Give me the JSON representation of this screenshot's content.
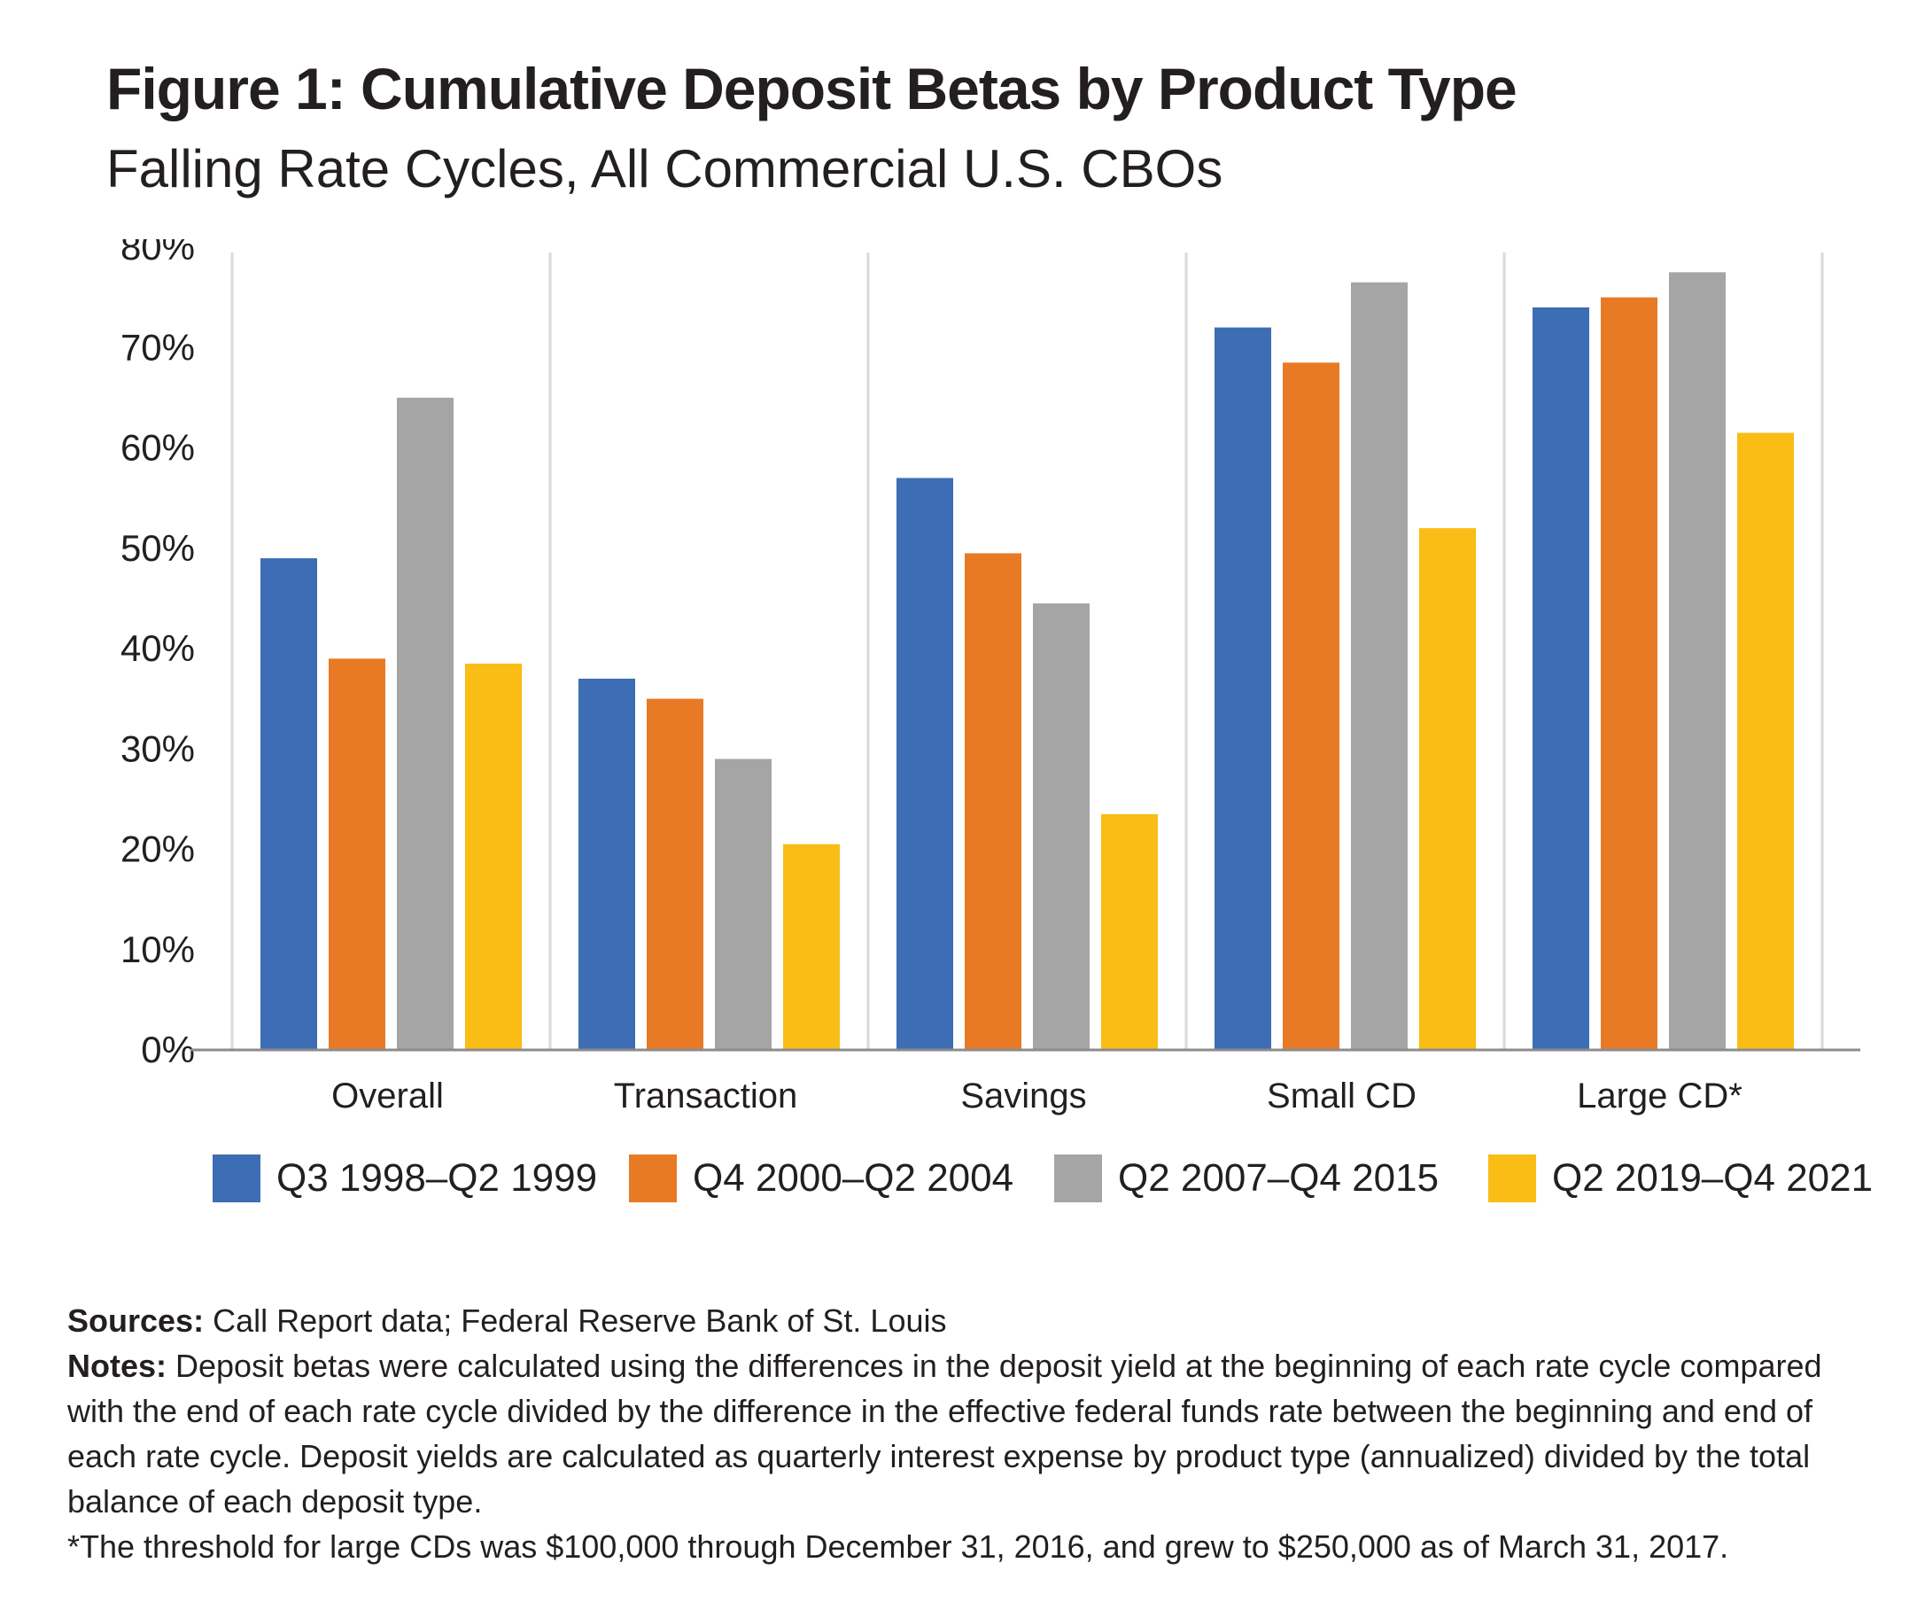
{
  "figure": {
    "title": "Figure 1: Cumulative Deposit Betas by Product Type",
    "subtitle": "Falling Rate Cycles, All Commercial U.S. CBOs"
  },
  "chart_data": {
    "type": "bar",
    "categories": [
      "Overall",
      "Transaction",
      "Savings",
      "Small CD",
      "Large CD*"
    ],
    "series": [
      {
        "name": "Q3 1998–Q2 1999",
        "color": "#3d6db4",
        "values": [
          49,
          37,
          57,
          72,
          74
        ]
      },
      {
        "name": "Q4 2000–Q2 2004",
        "color": "#e87a26",
        "values": [
          39,
          35,
          49.5,
          68.5,
          75
        ]
      },
      {
        "name": "Q2 2007–Q4 2015",
        "color": "#a5a5a5",
        "values": [
          65,
          29,
          44.5,
          76.5,
          77.5
        ]
      },
      {
        "name": "Q2 2019–Q4 2021",
        "color": "#f9bd15",
        "values": [
          38.5,
          20.5,
          23.5,
          52,
          61.5
        ]
      }
    ],
    "yticks": [
      "0%",
      "10%",
      "20%",
      "30%",
      "40%",
      "50%",
      "60%",
      "70%",
      "80%"
    ],
    "ylim": [
      0,
      80
    ],
    "grid": "vertical category separators",
    "legend_position": "bottom"
  },
  "notes": {
    "sources_label": "Sources:",
    "sources_text": " Call Report data; Federal Reserve Bank of St. Louis",
    "notes_label": "Notes:",
    "notes_text": " Deposit betas were calculated using the differences in the deposit yield at the beginning of each rate cycle compared with the end of each rate cycle divided by the difference in the effective federal funds rate between the beginning and end of each rate cycle. Deposit yields are calculated as quarterly interest expense by product type (annualized) divided by the total balance of each deposit type.",
    "footnote": "*The threshold for large CDs was $100,000 through December 31, 2016, and grew to $250,000 as of March 31, 2017."
  }
}
